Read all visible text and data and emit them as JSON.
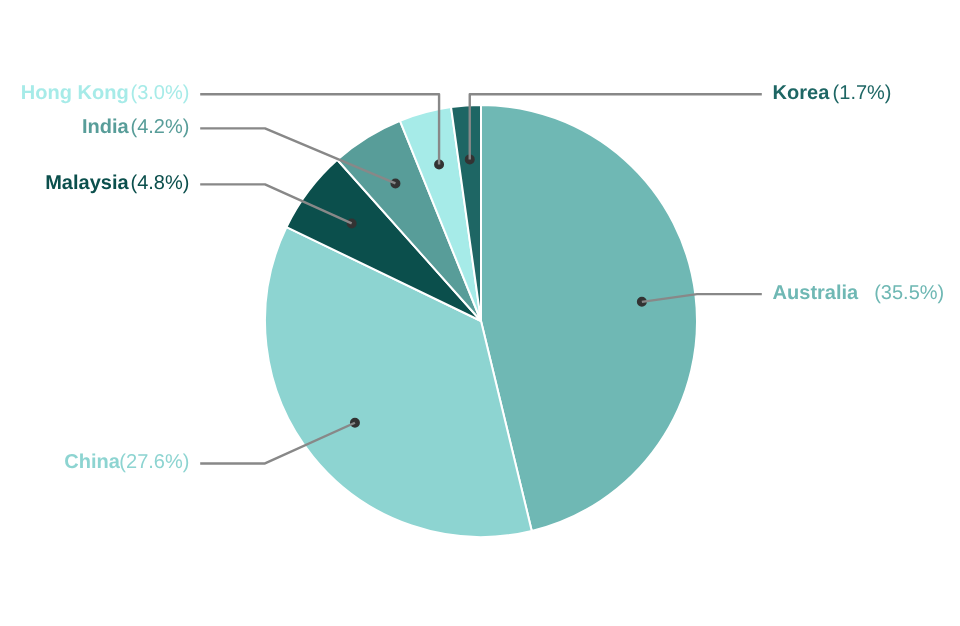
{
  "chart_data": {
    "type": "pie",
    "categories": [
      "Australia",
      "China",
      "Malaysia",
      "India",
      "Hong Kong",
      "Korea"
    ],
    "values": [
      35.5,
      27.6,
      4.8,
      4.2,
      3.0,
      1.7
    ],
    "value_labels": [
      "(35.5%)",
      "(27.6%)",
      "(4.8%)",
      "(4.2%)",
      "(3.0%)",
      "(1.7%)"
    ],
    "colors": [
      "#6fb8b4",
      "#8dd4d1",
      "#0b4f4c",
      "#589d99",
      "#a6ebe8",
      "#1e6664"
    ]
  }
}
